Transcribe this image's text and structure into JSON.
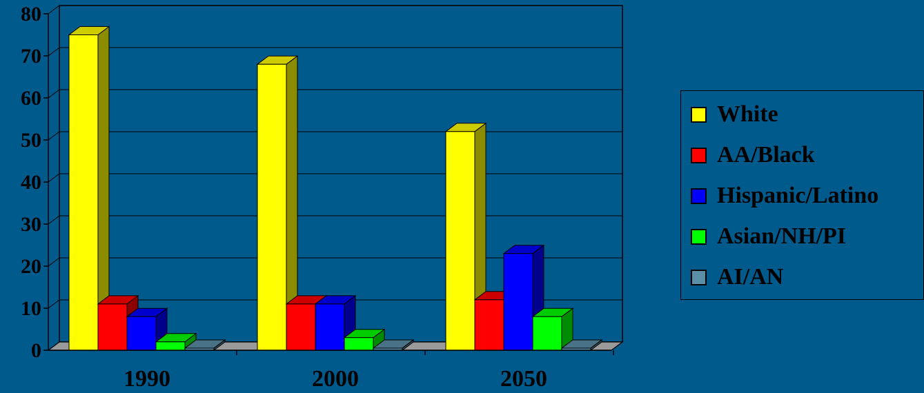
{
  "chart_data": {
    "type": "bar",
    "categories": [
      "1990",
      "2000",
      "2050"
    ],
    "series": [
      {
        "name": "White",
        "values": [
          75,
          68,
          52
        ]
      },
      {
        "name": "AA/Black",
        "values": [
          11,
          11,
          12
        ]
      },
      {
        "name": "Hispanic/Latino",
        "values": [
          8,
          11,
          23
        ]
      },
      {
        "name": "Asian/NH/PI",
        "values": [
          2,
          3,
          8
        ]
      },
      {
        "name": "AI/AN",
        "values": [
          0.5,
          0.5,
          0.5
        ]
      }
    ],
    "y_ticks": [
      "0",
      "10",
      "20",
      "30",
      "40",
      "50",
      "60",
      "70",
      "80"
    ],
    "ylim": [
      0,
      80
    ],
    "grid": true,
    "legend_position": "right",
    "colors": {
      "series": [
        "#FFFF00",
        "#FF0000",
        "#0000FF",
        "#00FF00",
        "#5B8FA8"
      ],
      "background": "#005A8C"
    }
  }
}
